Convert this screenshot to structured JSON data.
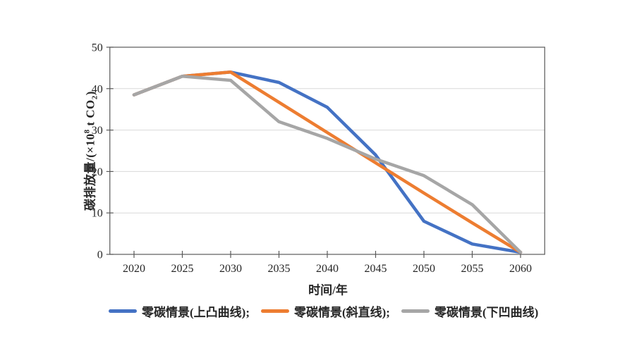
{
  "page": {
    "background": "#ffffff"
  },
  "chart_data": {
    "type": "line",
    "title": "",
    "x_categories": [
      "2020",
      "2025",
      "2030",
      "2035",
      "2040",
      "2045",
      "2050",
      "2055",
      "2060"
    ],
    "xlabel": "时间/年",
    "ylabel_parts": {
      "prefix": "碳排放量/(×10",
      "sup": "8",
      "mid": " t CO",
      "sub": "2",
      "suffix": ")"
    },
    "ylim": [
      0,
      50
    ],
    "yticks": [
      "0",
      "10",
      "20",
      "30",
      "40",
      "50"
    ],
    "grid": "horizontal",
    "legend_position": "bottom",
    "series": [
      {
        "name": "零碳情景(上凸曲线);",
        "color": "#4472C4",
        "values": [
          38.5,
          43,
          44,
          41.5,
          35.5,
          24,
          8,
          2.5,
          0.5
        ]
      },
      {
        "name": "零碳情景(斜直线);",
        "color": "#ED7D31",
        "values": [
          38.5,
          43,
          44,
          36.7,
          29.4,
          22.1,
          14.8,
          7.6,
          0.5
        ]
      },
      {
        "name": "零碳情景(下凹曲线)",
        "color": "#A6A6A6",
        "values": [
          38.5,
          43,
          42,
          32,
          28,
          23,
          19,
          12,
          0.5
        ]
      }
    ],
    "colors": {
      "axis": "#595959",
      "gridline": "#D9D9D9",
      "text": "#262626"
    }
  }
}
